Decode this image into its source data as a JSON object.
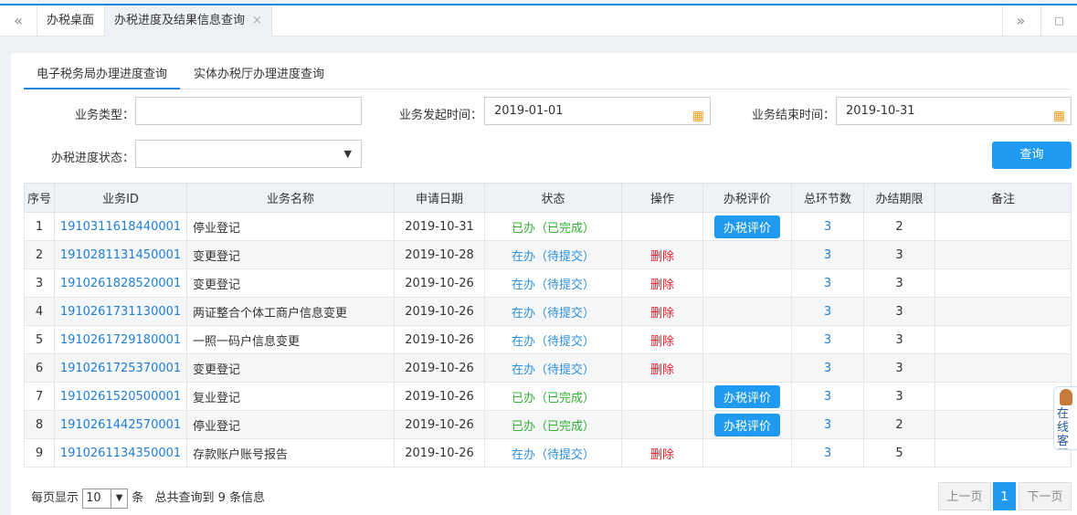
{
  "tabbar": {
    "prev": "«",
    "next": "»",
    "tabs": [
      {
        "label": "办税桌面"
      },
      {
        "label": "办税进度及结果信息查询",
        "close": "×"
      }
    ]
  },
  "subtabs": [
    "电子税务局办理进度查询",
    "实体办税厅办理进度查询"
  ],
  "form": {
    "type_label": "业务类型：",
    "type_value": "",
    "start_label": "业务发起时间：",
    "start_value": "2019-01-01",
    "end_label": "业务结束时间：",
    "end_value": "2019-10-31",
    "status_label": "办税进度状态：",
    "status_value": "",
    "query": "查询"
  },
  "table": {
    "headers": [
      "序号",
      "业务ID",
      "业务名称",
      "申请日期",
      "状态",
      "操作",
      "办税评价",
      "总环节数",
      "办结期限",
      "备注"
    ],
    "rows": [
      {
        "no": "1",
        "id": "1910311618440001",
        "name": "停业登记",
        "date": "2019-10-31",
        "status": "已办（已完成）",
        "op": "",
        "eval": "办税评价",
        "total": "3",
        "limit": "2",
        "note": ""
      },
      {
        "no": "2",
        "id": "1910281131450001",
        "name": "变更登记",
        "date": "2019-10-28",
        "status": "在办（待提交）",
        "op": "删除",
        "eval": "",
        "total": "3",
        "limit": "3",
        "note": ""
      },
      {
        "no": "3",
        "id": "1910261828520001",
        "name": "变更登记",
        "date": "2019-10-26",
        "status": "在办（待提交）",
        "op": "删除",
        "eval": "",
        "total": "3",
        "limit": "3",
        "note": ""
      },
      {
        "no": "4",
        "id": "1910261731130001",
        "name": "两证整合个体工商户信息变更",
        "date": "2019-10-26",
        "status": "在办（待提交）",
        "op": "删除",
        "eval": "",
        "total": "3",
        "limit": "3",
        "note": ""
      },
      {
        "no": "5",
        "id": "1910261729180001",
        "name": "一照一码户信息变更",
        "date": "2019-10-26",
        "status": "在办（待提交）",
        "op": "删除",
        "eval": "",
        "total": "3",
        "limit": "3",
        "note": ""
      },
      {
        "no": "6",
        "id": "1910261725370001",
        "name": "变更登记",
        "date": "2019-10-26",
        "status": "在办（待提交）",
        "op": "删除",
        "eval": "",
        "total": "3",
        "limit": "3",
        "note": ""
      },
      {
        "no": "7",
        "id": "1910261520500001",
        "name": "复业登记",
        "date": "2019-10-26",
        "status": "已办（已完成）",
        "op": "",
        "eval": "办税评价",
        "total": "3",
        "limit": "3",
        "note": ""
      },
      {
        "no": "8",
        "id": "1910261442570001",
        "name": "停业登记",
        "date": "2019-10-26",
        "status": "已办（已完成）",
        "op": "",
        "eval": "办税评价",
        "total": "3",
        "limit": "2",
        "note": ""
      },
      {
        "no": "9",
        "id": "1910261134350001",
        "name": "存款账户账号报告",
        "date": "2019-10-26",
        "status": "在办（待提交）",
        "op": "删除",
        "eval": "",
        "total": "3",
        "limit": "5",
        "note": ""
      }
    ]
  },
  "footer": {
    "per_page_label": "每页显示",
    "per_page": "10",
    "unit": "条",
    "total_text": "总共查询到 9 条信息"
  },
  "pagination": {
    "prev": "上一页",
    "current": "1",
    "next": "下一页"
  },
  "kefu": "在线客服"
}
